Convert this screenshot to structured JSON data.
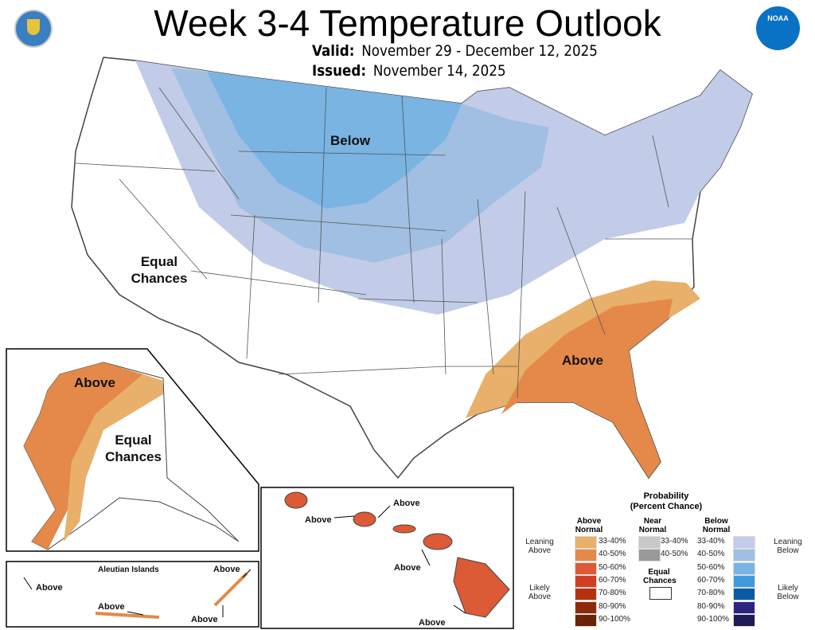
{
  "title": "Week 3-4 Temperature Outlook",
  "valid": {
    "label": "Valid:",
    "value": "November 29 - December 12, 2025"
  },
  "issued": {
    "label": "Issued:",
    "value": "November 14, 2025"
  },
  "logos": {
    "left": "U.S. Department of Commerce seal",
    "right": "NOAA"
  },
  "map_labels": {
    "below": "Below",
    "equal_chances_conus": "Equal Chances",
    "above_se": "Above",
    "alaska_above": "Above",
    "alaska_equal": "Equal Chances",
    "aleutian_title": "Aleutian Islands",
    "aleutian_above": [
      "Above",
      "Above",
      "Above",
      "Above"
    ],
    "hawaii_above": [
      "Above",
      "Above",
      "Above",
      "Above"
    ]
  },
  "legend": {
    "title": "Probability",
    "subtitle": "(Percent Chance)",
    "above_header": "Above Normal",
    "near_header": "Near Normal",
    "below_header": "Below Normal",
    "leaning_above": "Leaning Above",
    "likely_above": "Likely Above",
    "leaning_below": "Leaning Below",
    "likely_below": "Likely Below",
    "equal_chances": "Equal Chances",
    "above": [
      {
        "range": "33-40%",
        "color": "#e8b06a"
      },
      {
        "range": "40-50%",
        "color": "#e4894a"
      },
      {
        "range": "50-60%",
        "color": "#dc5a35"
      },
      {
        "range": "60-70%",
        "color": "#d13e22"
      },
      {
        "range": "70-80%",
        "color": "#b5320e"
      },
      {
        "range": "80-90%",
        "color": "#8c2a0c"
      },
      {
        "range": "90-100%",
        "color": "#6a2208"
      }
    ],
    "near": [
      {
        "range": "33-40%",
        "color": "#c8c8c8"
      },
      {
        "range": "40-50%",
        "color": "#999999"
      }
    ],
    "below": [
      {
        "range": "33-40%",
        "color": "#c2cce8"
      },
      {
        "range": "40-50%",
        "color": "#a0bfe2"
      },
      {
        "range": "50-60%",
        "color": "#79b4e2"
      },
      {
        "range": "60-70%",
        "color": "#3e9be0"
      },
      {
        "range": "70-80%",
        "color": "#0a5aa5"
      },
      {
        "range": "80-90%",
        "color": "#2e2383"
      },
      {
        "range": "90-100%",
        "color": "#1e1a55"
      }
    ]
  }
}
